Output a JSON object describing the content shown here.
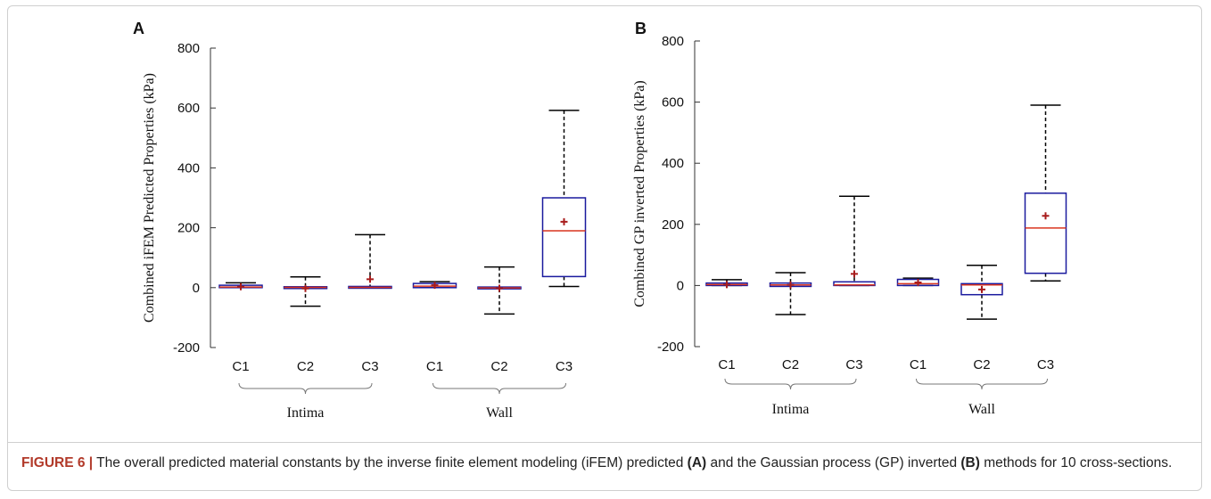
{
  "chart_data": [
    {
      "type": "box",
      "panel_label": "A",
      "ylabel": "Combined iFEM Predicted Properties (kPa)",
      "ylim": [
        -200,
        800
      ],
      "yticks": [
        -200,
        0,
        200,
        400,
        600,
        800
      ],
      "categories": [
        "C1",
        "C2",
        "C3",
        "C1",
        "C2",
        "C3"
      ],
      "groups": [
        {
          "label": "Intima",
          "from": 0,
          "to": 2
        },
        {
          "label": "Wall",
          "from": 3,
          "to": 5
        }
      ],
      "boxes": [
        {
          "whisker_low": 0,
          "q1": 0,
          "median": 2,
          "q3": 8,
          "whisker_high": 16,
          "mean": 3
        },
        {
          "whisker_low": -62,
          "q1": -1,
          "median": 1,
          "q3": 3,
          "whisker_high": 36,
          "mean": -3
        },
        {
          "whisker_low": 0,
          "q1": 0,
          "median": 1,
          "q3": 4,
          "whisker_high": 177,
          "mean": 28
        },
        {
          "whisker_low": 0,
          "q1": 0,
          "median": 5,
          "q3": 14,
          "whisker_high": 20,
          "mean": 8
        },
        {
          "whisker_low": -88,
          "q1": -4,
          "median": -1,
          "q3": 2,
          "whisker_high": 69,
          "mean": -2
        },
        {
          "whisker_low": 4,
          "q1": 37,
          "median": 190,
          "q3": 300,
          "whisker_high": 592,
          "mean": 220
        }
      ]
    },
    {
      "type": "box",
      "panel_label": "B",
      "ylabel": "Combined GP inverted Properties (kPa)",
      "ylim": [
        -200,
        800
      ],
      "yticks": [
        -200,
        0,
        200,
        400,
        600,
        800
      ],
      "categories": [
        "C1",
        "C2",
        "C3",
        "C1",
        "C2",
        "C3"
      ],
      "groups": [
        {
          "label": "Intima",
          "from": 0,
          "to": 2
        },
        {
          "label": "Wall",
          "from": 3,
          "to": 5
        }
      ],
      "boxes": [
        {
          "whisker_low": 0,
          "q1": 0,
          "median": 3,
          "q3": 8,
          "whisker_high": 19,
          "mean": 3
        },
        {
          "whisker_low": -95,
          "q1": -3,
          "median": 2,
          "q3": 8,
          "whisker_high": 42,
          "mean": 2
        },
        {
          "whisker_low": 0,
          "q1": 0,
          "median": 2,
          "q3": 12,
          "whisker_high": 292,
          "mean": 38
        },
        {
          "whisker_low": 0,
          "q1": 0,
          "median": 6,
          "q3": 20,
          "whisker_high": 24,
          "mean": 10
        },
        {
          "whisker_low": -110,
          "q1": -30,
          "median": 2,
          "q3": 6,
          "whisker_high": 66,
          "mean": -13
        },
        {
          "whisker_low": 15,
          "q1": 40,
          "median": 188,
          "q3": 302,
          "whisker_high": 590,
          "mean": 228
        }
      ]
    }
  ],
  "colors": {
    "box": "#1a1a9e",
    "median": "#d9341f",
    "mean": "#a81c1c",
    "whisker": "#000000",
    "caption_label": "#b23a2a"
  },
  "caption": {
    "label": "FIGURE 6 |",
    "text_1": " The overall predicted material constants by the inverse finite element modeling (iFEM) predicted ",
    "bold_1": "(A)",
    "text_2": " and the Gaussian process (GP) inverted ",
    "bold_2": "(B)",
    "text_3": " methods for 10 cross-sections."
  }
}
